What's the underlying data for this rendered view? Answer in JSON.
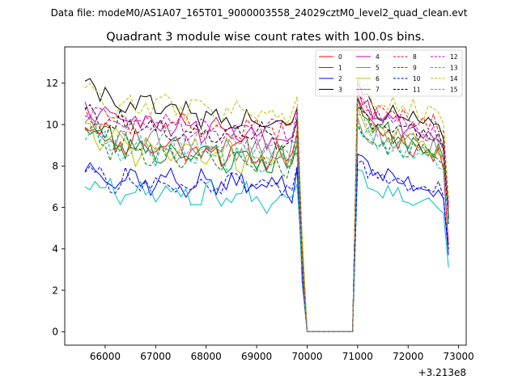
{
  "header": {
    "data_file": "Data file: modeM0/AS1A07_165T01_9000003558_24029cztM0_level2_quad_clean.evt"
  },
  "chart_data": {
    "type": "line",
    "title": "Quadrant 3 module wise count rates with 100.0s bins.",
    "xlabel": "",
    "ylabel": "",
    "x_offset_label": "+3.213e8",
    "xlim": [
      65200,
      73150
    ],
    "ylim": [
      -0.65,
      13.75
    ],
    "xticks": [
      66000,
      67000,
      68000,
      69000,
      70000,
      71000,
      72000,
      73000
    ],
    "xtick_labels": [
      "66000",
      "67000",
      "68000",
      "69000",
      "70000",
      "71000",
      "72000",
      "73000"
    ],
    "yticks": [
      0,
      2,
      4,
      6,
      8,
      10,
      12
    ],
    "ytick_labels": [
      "0",
      "2",
      "4",
      "6",
      "8",
      "10",
      "12"
    ],
    "x_start": 65600,
    "x_step": 100,
    "num_points": 73,
    "gap": {
      "zero_from_index": 5,
      "zero_to_index": 11,
      "dropout_start_index": 44
    },
    "legend_position": "top-right",
    "series": [
      {
        "name": "0",
        "color": "#ff0000",
        "dash": "solid",
        "seed": 11,
        "base": 9.3,
        "end": 8.4,
        "start_boost": 1.2,
        "post_boost": 1.4,
        "after_gap": 10.3,
        "after_gap_end": 8.1,
        "drop_end": 4.2,
        "noise": 0.55
      },
      {
        "name": "1",
        "color": "#008000",
        "dash": "solid",
        "seed": 23,
        "base": 9.1,
        "end": 8.1,
        "start_boost": 1.3,
        "post_boost": 1.6,
        "after_gap": 10.1,
        "after_gap_end": 8.7,
        "drop_end": 5.5,
        "noise": 0.55
      },
      {
        "name": "2",
        "color": "#0000ff",
        "dash": "solid",
        "seed": 37,
        "base": 7.4,
        "end": 7.0,
        "start_boost": 0.8,
        "post_boost": 1.1,
        "after_gap": 7.8,
        "after_gap_end": 6.7,
        "drop_end": 3.7,
        "noise": 0.45
      },
      {
        "name": "3",
        "color": "#000000",
        "dash": "solid",
        "seed": 41,
        "base": 11.2,
        "end": 9.8,
        "start_boost": 1.2,
        "post_boost": 1.5,
        "after_gap": 11.0,
        "after_gap_end": 9.6,
        "drop_end": 5.2,
        "noise": 0.5
      },
      {
        "name": "4",
        "color": "#bf00bf",
        "dash": "solid",
        "seed": 53,
        "base": 10.6,
        "end": 9.3,
        "start_boost": 0.6,
        "post_boost": 1.2,
        "after_gap": 10.9,
        "after_gap_end": 9.1,
        "drop_end": 6.0,
        "noise": 0.5
      },
      {
        "name": "5",
        "color": "#00bfbf",
        "dash": "solid",
        "seed": 67,
        "base": 6.9,
        "end": 6.4,
        "start_boost": 0.6,
        "post_boost": 1.0,
        "after_gap": 7.2,
        "after_gap_end": 6.0,
        "drop_end": 3.1,
        "noise": 0.45
      },
      {
        "name": "6",
        "color": "#bfbf00",
        "dash": "solid",
        "seed": 71,
        "base": 9.0,
        "end": 8.3,
        "start_boost": 1.0,
        "post_boost": 1.4,
        "after_gap": 9.9,
        "after_gap_end": 8.6,
        "drop_end": 5.6,
        "noise": 0.55
      },
      {
        "name": "7",
        "color": "#808080",
        "dash": "solid",
        "seed": 83,
        "base": 9.2,
        "end": 8.5,
        "start_boost": 0.8,
        "post_boost": 1.2,
        "after_gap": 9.6,
        "after_gap_end": 8.8,
        "drop_end": 5.8,
        "noise": 0.55
      },
      {
        "name": "8",
        "color": "#ff0000",
        "dash": "dashed",
        "seed": 97,
        "base": 10.3,
        "end": 9.8,
        "start_boost": 0.6,
        "post_boost": 1.1,
        "after_gap": 10.7,
        "after_gap_end": 10.0,
        "drop_end": 6.2,
        "noise": 0.45
      },
      {
        "name": "9",
        "color": "#008000",
        "dash": "dashed",
        "seed": 101,
        "base": 8.9,
        "end": 8.0,
        "start_boost": 0.9,
        "post_boost": 1.2,
        "after_gap": 9.3,
        "after_gap_end": 8.4,
        "drop_end": 5.6,
        "noise": 0.5
      },
      {
        "name": "10",
        "color": "#0000ff",
        "dash": "dashed",
        "seed": 113,
        "base": 7.3,
        "end": 7.0,
        "start_boost": 0.6,
        "post_boost": 1.0,
        "after_gap": 7.5,
        "after_gap_end": 6.8,
        "drop_end": 4.0,
        "noise": 0.4
      },
      {
        "name": "11",
        "color": "#000000",
        "dash": "dashed",
        "seed": 127,
        "base": 10.0,
        "end": 9.4,
        "start_boost": 0.6,
        "post_boost": 1.1,
        "after_gap": 10.2,
        "after_gap_end": 9.2,
        "drop_end": 5.4,
        "noise": 0.45
      },
      {
        "name": "12",
        "color": "#bf00bf",
        "dash": "dashed",
        "seed": 131,
        "base": 10.2,
        "end": 9.6,
        "start_boost": 0.7,
        "post_boost": 1.2,
        "after_gap": 10.5,
        "after_gap_end": 9.4,
        "drop_end": 5.9,
        "noise": 0.45
      },
      {
        "name": "13",
        "color": "#00bfbf",
        "dash": "dashed",
        "seed": 149,
        "base": 9.0,
        "end": 8.3,
        "start_boost": 0.8,
        "post_boost": 1.2,
        "after_gap": 9.2,
        "after_gap_end": 8.2,
        "drop_end": 5.3,
        "noise": 0.5
      },
      {
        "name": "14",
        "color": "#bfbf00",
        "dash": "dashed",
        "seed": 157,
        "base": 11.0,
        "end": 10.6,
        "start_boost": 1.0,
        "post_boost": 1.3,
        "after_gap": 11.4,
        "after_gap_end": 10.4,
        "drop_end": 6.5,
        "noise": 0.5
      },
      {
        "name": "15",
        "color": "#808080",
        "dash": "dashed",
        "seed": 163,
        "base": 9.4,
        "end": 8.9,
        "start_boost": 0.7,
        "post_boost": 1.1,
        "after_gap": 9.8,
        "after_gap_end": 9.0,
        "drop_end": 5.7,
        "noise": 0.45
      }
    ]
  }
}
